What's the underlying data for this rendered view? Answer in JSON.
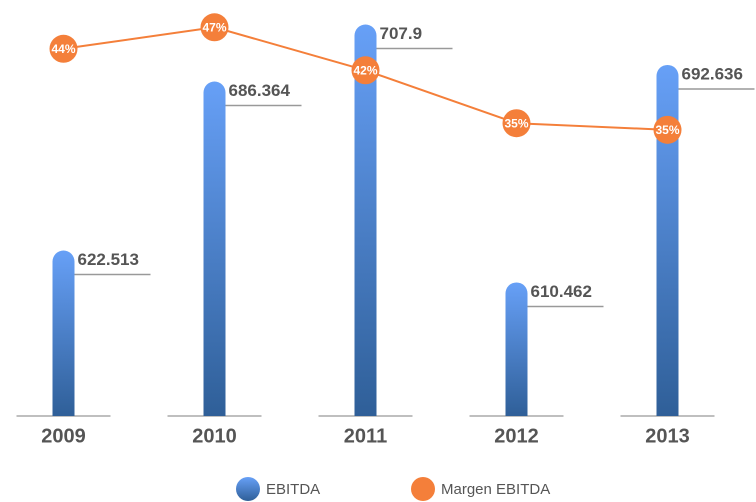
{
  "chart_data": {
    "type": "bar",
    "categories": [
      "2009",
      "2010",
      "2011",
      "2012",
      "2013"
    ],
    "series": [
      {
        "name": "EBITDA",
        "type": "bar",
        "color": "#5b93e6",
        "values": [
          622.513,
          686.364,
          707.9,
          610.462,
          692.636
        ]
      },
      {
        "name": "Margen EBITDA",
        "type": "line",
        "axis": "y2",
        "color": "#f47f3a",
        "values": [
          44.4,
          47,
          41.8,
          35.4,
          34.6
        ],
        "value_labels": [
          "44%",
          "47%",
          "42%",
          "35%",
          "35%"
        ]
      }
    ],
    "ylim": [
      560,
      710
    ],
    "y2lim": [
      0,
      48
    ],
    "legend": "bottom"
  }
}
